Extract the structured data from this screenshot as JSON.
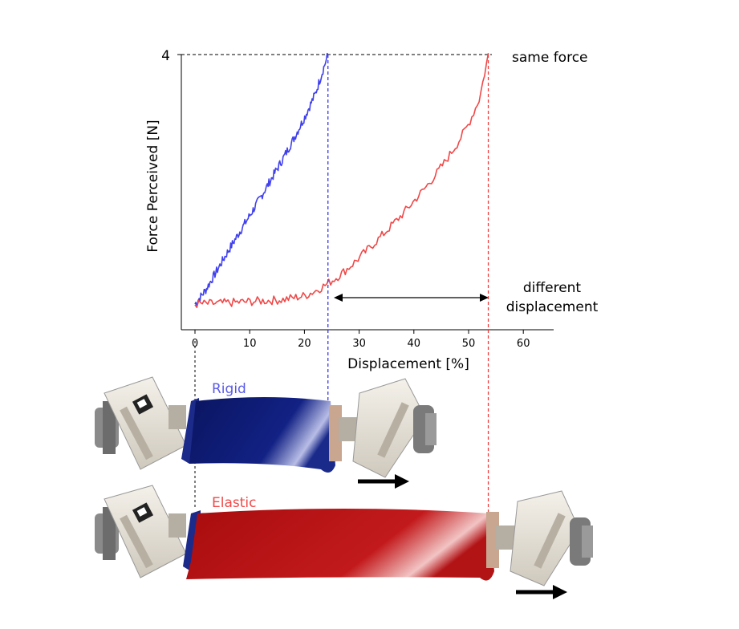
{
  "chart_data": {
    "type": "line",
    "xlabel": "Displacement [%]",
    "ylabel": "Force Perceived [N]",
    "xlim": [
      -3,
      67
    ],
    "ylim": [
      -0.35,
      4
    ],
    "xticks": [
      0,
      10,
      20,
      30,
      40,
      50,
      60
    ],
    "yticks": [
      4
    ],
    "grid": false,
    "series": [
      {
        "name": "Rigid",
        "color": "#4040ee",
        "x": [
          0,
          2,
          4,
          6,
          8,
          10,
          12,
          14,
          16,
          18,
          20,
          22,
          24.3
        ],
        "y": [
          0.05,
          0.28,
          0.58,
          0.88,
          1.17,
          1.45,
          1.74,
          2.04,
          2.34,
          2.66,
          3.0,
          3.38,
          4.0
        ]
      },
      {
        "name": "Elastic",
        "color": "#f04848",
        "x": [
          0,
          4,
          8,
          12,
          16,
          20,
          22,
          24,
          26,
          28,
          30,
          32,
          34,
          36,
          38,
          40,
          42,
          44,
          46,
          48,
          50,
          52,
          53.6
        ],
        "y": [
          0.05,
          0.06,
          0.08,
          0.1,
          0.12,
          0.18,
          0.26,
          0.36,
          0.48,
          0.62,
          0.78,
          0.95,
          1.12,
          1.3,
          1.48,
          1.68,
          1.88,
          2.1,
          2.34,
          2.6,
          2.9,
          3.3,
          4.0
        ]
      }
    ],
    "annotations": {
      "y_top_label": "4",
      "same_force": "same force",
      "different_displacement_line1": "different",
      "different_displacement_line2": "displacement",
      "rigid_marker_x": 24.3,
      "elastic_marker_x": 53.6
    }
  },
  "figure": {
    "rigid_label": "Rigid",
    "elastic_label": "Elastic",
    "rigid_color": "#5a5ae8",
    "elastic_color": "#f04848",
    "rigid_fabric_color": "#0d1a6e",
    "elastic_fabric_color": "#b80e10"
  }
}
